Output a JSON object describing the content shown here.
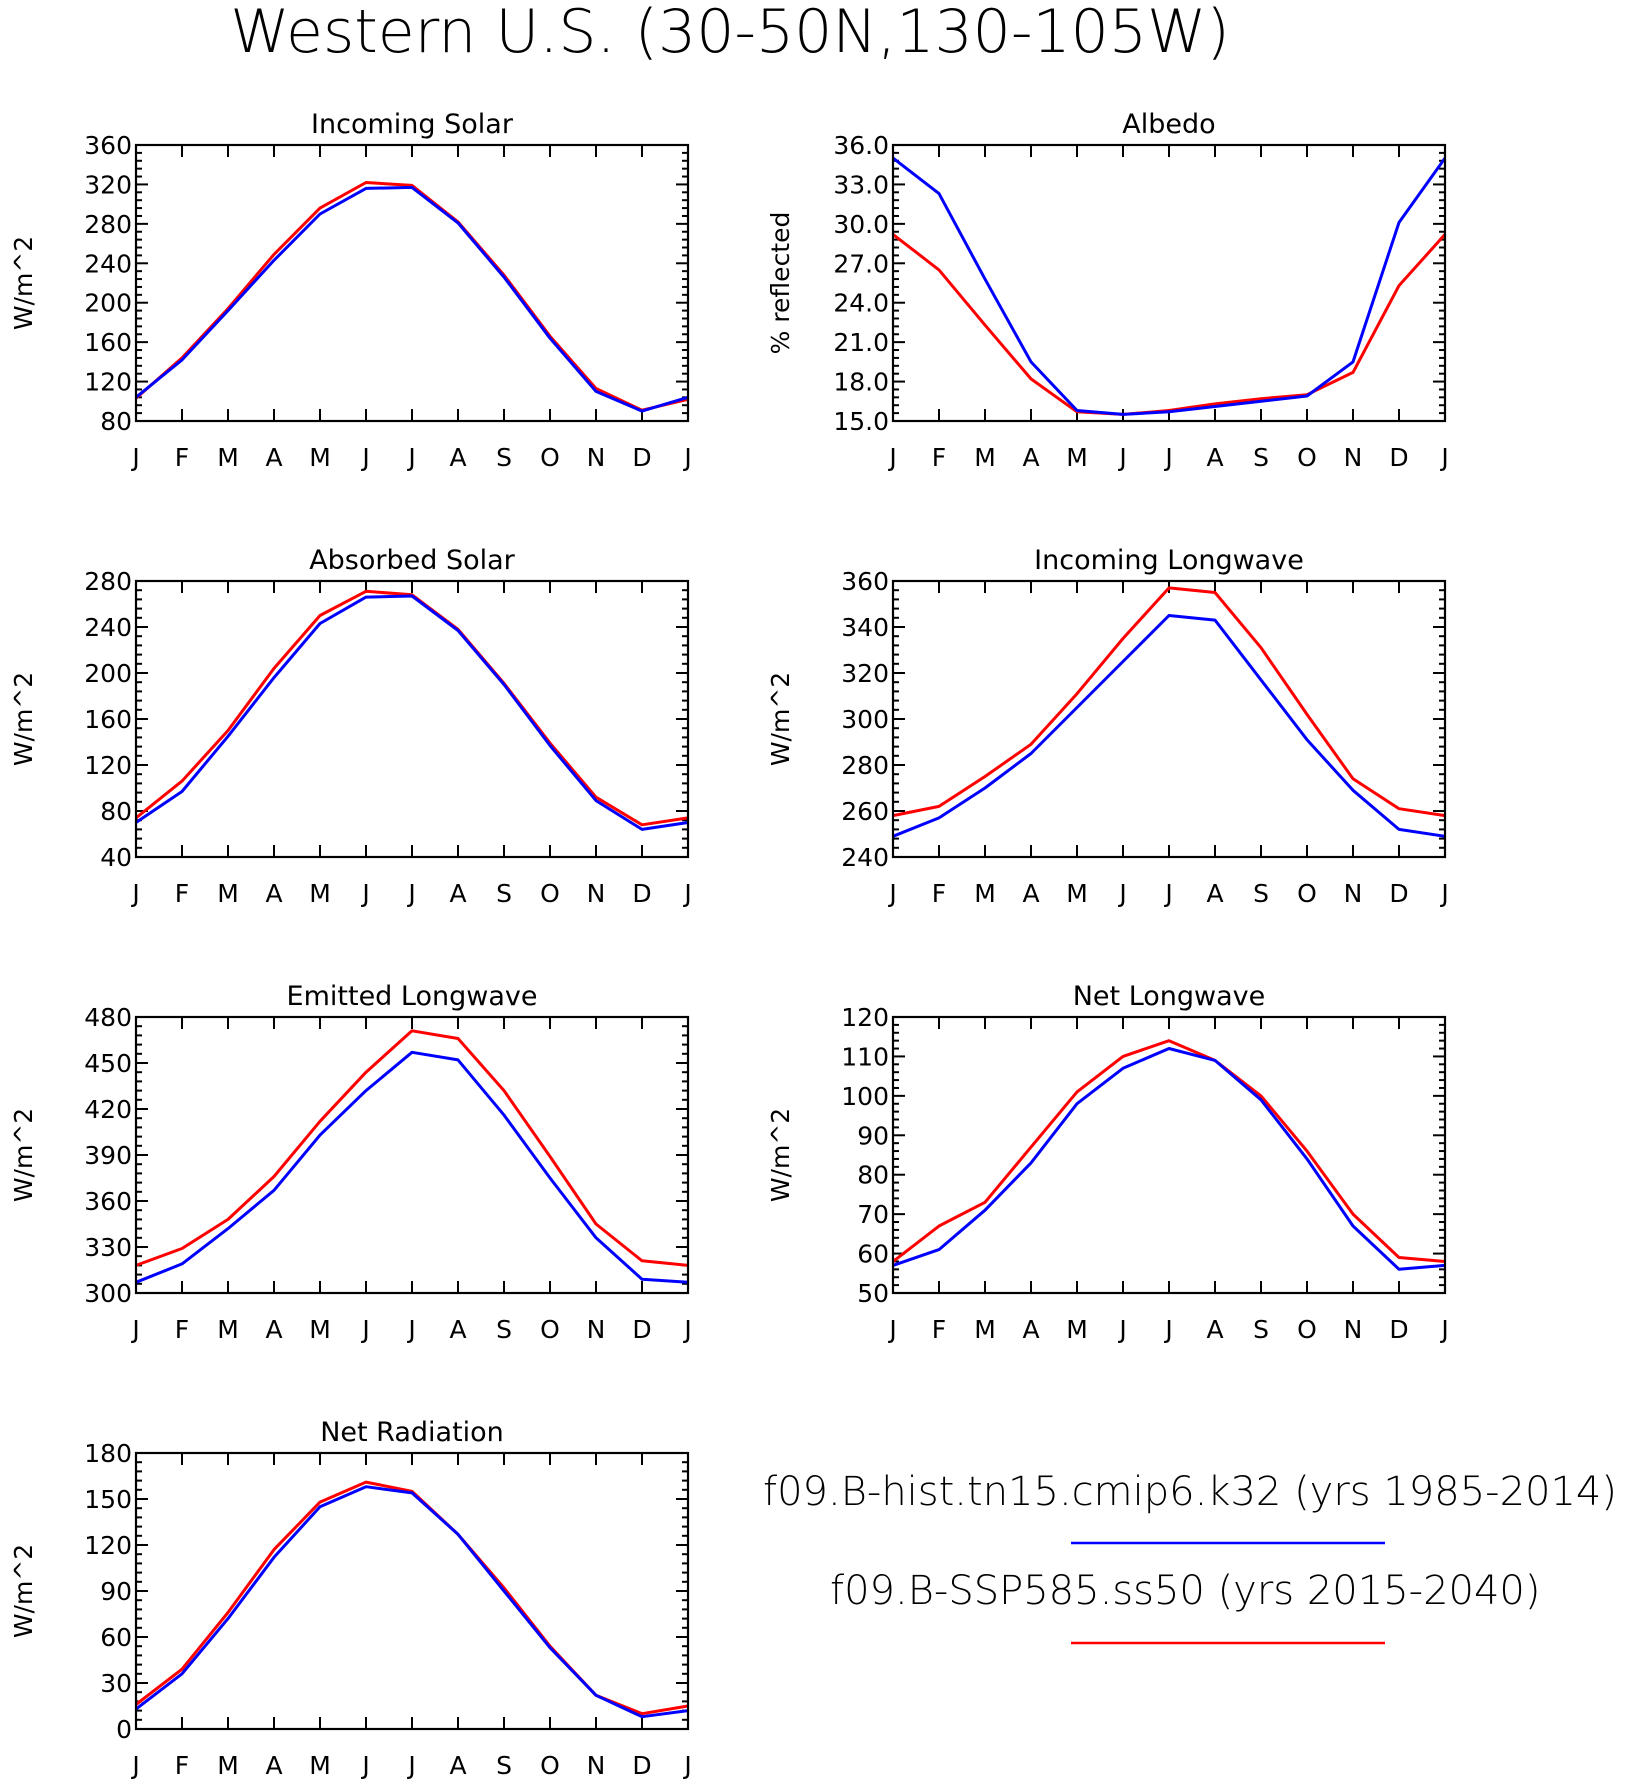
{
  "title": "Western U.S. (30-50N,130-105W)",
  "legend": [
    {
      "label": "f09.B-hist.tn15.cmip6.k32 (yrs 1985-2014)",
      "color": "#0000ff"
    },
    {
      "label": "f09.B-SSP585.ss50 (yrs 2015-2040)",
      "color": "#ff0000"
    }
  ],
  "series_colors": {
    "hist": "#0000ff",
    "ssp585": "#ff0000"
  },
  "chart_data": [
    {
      "type": "line",
      "title": "Incoming Solar",
      "ylabel": "W/m^2",
      "categories": [
        "J",
        "F",
        "M",
        "A",
        "M",
        "J",
        "J",
        "A",
        "S",
        "O",
        "N",
        "D",
        "J"
      ],
      "ylim": [
        80,
        360
      ],
      "yticks": [
        80,
        120,
        160,
        200,
        240,
        280,
        320,
        360
      ],
      "ytick_labels": [
        "80",
        "120",
        "160",
        "200",
        "240",
        "280",
        "320",
        "360"
      ],
      "series": [
        {
          "values": [
            104,
            142,
            192,
            243,
            290,
            316,
            317,
            281,
            226,
            164,
            110,
            90,
            104
          ]
        },
        {
          "values": [
            103,
            144,
            194,
            249,
            296,
            322,
            319,
            282,
            228,
            166,
            113,
            91,
            102
          ]
        }
      ]
    },
    {
      "type": "line",
      "title": "Albedo",
      "ylabel": "% reflected",
      "categories": [
        "J",
        "F",
        "M",
        "A",
        "M",
        "J",
        "J",
        "A",
        "S",
        "O",
        "N",
        "D",
        "J"
      ],
      "ylim": [
        15,
        36
      ],
      "yticks": [
        15,
        18,
        21,
        24,
        27,
        30,
        33,
        36
      ],
      "ytick_labels": [
        "15.0",
        "18.0",
        "21.0",
        "24.0",
        "27.0",
        "30.0",
        "33.0",
        "36.0"
      ],
      "series": [
        {
          "values": [
            35.0,
            32.3,
            25.8,
            19.5,
            15.8,
            15.5,
            15.7,
            16.1,
            16.5,
            16.9,
            19.5,
            30.1,
            35.0
          ]
        },
        {
          "values": [
            29.2,
            26.5,
            22.3,
            18.2,
            15.7,
            15.5,
            15.8,
            16.3,
            16.7,
            17.0,
            18.7,
            25.3,
            29.2
          ]
        }
      ]
    },
    {
      "type": "line",
      "title": "Absorbed Solar",
      "ylabel": "W/m^2",
      "categories": [
        "J",
        "F",
        "M",
        "A",
        "M",
        "J",
        "J",
        "A",
        "S",
        "O",
        "N",
        "D",
        "J"
      ],
      "ylim": [
        40,
        280
      ],
      "yticks": [
        40,
        80,
        120,
        160,
        200,
        240,
        280
      ],
      "ytick_labels": [
        "40",
        "80",
        "120",
        "160",
        "200",
        "240",
        "280"
      ],
      "series": [
        {
          "values": [
            70,
            97,
            145,
            196,
            243,
            266,
            267,
            237,
            190,
            137,
            89,
            64,
            70
          ]
        },
        {
          "values": [
            74,
            106,
            150,
            204,
            250,
            271,
            268,
            238,
            191,
            139,
            92,
            68,
            74
          ]
        }
      ]
    },
    {
      "type": "line",
      "title": "Incoming Longwave",
      "ylabel": "W/m^2",
      "categories": [
        "J",
        "F",
        "M",
        "A",
        "M",
        "J",
        "J",
        "A",
        "S",
        "O",
        "N",
        "D",
        "J"
      ],
      "ylim": [
        240,
        360
      ],
      "yticks": [
        240,
        260,
        280,
        300,
        320,
        340,
        360
      ],
      "ytick_labels": [
        "240",
        "260",
        "280",
        "300",
        "320",
        "340",
        "360"
      ],
      "series": [
        {
          "values": [
            249,
            257,
            270,
            285,
            305,
            325,
            345,
            343,
            317,
            291,
            269,
            252,
            249
          ]
        },
        {
          "values": [
            258,
            262,
            275,
            289,
            311,
            335,
            357,
            355,
            331,
            302,
            274,
            261,
            258
          ]
        }
      ]
    },
    {
      "type": "line",
      "title": "Emitted Longwave",
      "ylabel": "W/m^2",
      "categories": [
        "J",
        "F",
        "M",
        "A",
        "M",
        "J",
        "J",
        "A",
        "S",
        "O",
        "N",
        "D",
        "J"
      ],
      "ylim": [
        300,
        480
      ],
      "yticks": [
        300,
        330,
        360,
        390,
        420,
        450,
        480
      ],
      "ytick_labels": [
        "300",
        "330",
        "360",
        "390",
        "420",
        "450",
        "480"
      ],
      "series": [
        {
          "values": [
            307,
            319,
            342,
            367,
            403,
            432,
            457,
            452,
            416,
            375,
            336,
            309,
            307
          ]
        },
        {
          "values": [
            318,
            329,
            348,
            376,
            412,
            444,
            471,
            466,
            432,
            389,
            345,
            321,
            318
          ]
        }
      ]
    },
    {
      "type": "line",
      "title": "Net Longwave",
      "ylabel": "W/m^2",
      "categories": [
        "J",
        "F",
        "M",
        "A",
        "M",
        "J",
        "J",
        "A",
        "S",
        "O",
        "N",
        "D",
        "J"
      ],
      "ylim": [
        50,
        120
      ],
      "yticks": [
        50,
        60,
        70,
        80,
        90,
        100,
        110,
        120
      ],
      "ytick_labels": [
        "50",
        "60",
        "70",
        "80",
        "90",
        "100",
        "110",
        "120"
      ],
      "series": [
        {
          "values": [
            57,
            61,
            71,
            83,
            98,
            107,
            112,
            109,
            99,
            84,
            67,
            56,
            57
          ]
        },
        {
          "values": [
            58,
            67,
            73,
            87,
            101,
            110,
            114,
            109,
            100,
            86,
            70,
            59,
            58
          ]
        }
      ]
    },
    {
      "type": "line",
      "title": "Net Radiation",
      "ylabel": "W/m^2",
      "categories": [
        "J",
        "F",
        "M",
        "A",
        "M",
        "J",
        "J",
        "A",
        "S",
        "O",
        "N",
        "D",
        "J"
      ],
      "ylim": [
        0,
        180
      ],
      "yticks": [
        0,
        30,
        60,
        90,
        120,
        150,
        180
      ],
      "ytick_labels": [
        "0",
        "30",
        "60",
        "90",
        "120",
        "150",
        "180"
      ],
      "series": [
        {
          "values": [
            13,
            36,
            72,
            112,
            145,
            158,
            154,
            127,
            90,
            53,
            22,
            8,
            12
          ]
        },
        {
          "values": [
            16,
            39,
            76,
            117,
            148,
            161,
            155,
            127,
            92,
            54,
            22,
            10,
            15
          ]
        }
      ]
    }
  ]
}
